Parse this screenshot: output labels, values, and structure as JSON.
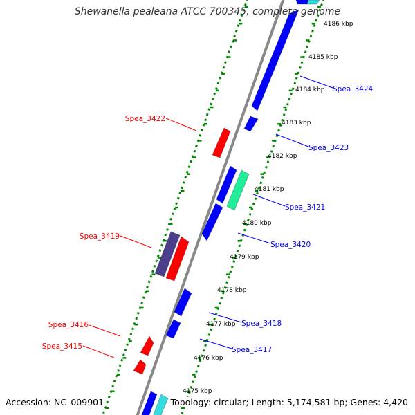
{
  "title": "Shewanella pealeana ATCC 700345, complete genome",
  "accession": "Accession: NC_009901",
  "topology": "Topology: circular; Length: 5,174,581 bp; Genes: 4,420",
  "colors": {
    "backbone": "#888888",
    "forward_gene": "#0000ff",
    "reverse_gene": "#ff0000",
    "dotted_track": "#008800",
    "rrna_gene": "#22ee99",
    "trna_gene": "#33dddd",
    "dark_gene": "#4b3f8c"
  },
  "ticks": [
    "4186 kbp",
    "4185 kbp",
    "4184 kbp",
    "4183 kbp",
    "4182 kbp",
    "4181 kbp",
    "4180 kbp",
    "4179 kbp",
    "4178 kbp",
    "4177 kbp",
    "4176 kbp",
    "4175 kbp"
  ],
  "gene_labels": [
    {
      "name": "Spea_3424",
      "strand": "forward"
    },
    {
      "name": "Spea_3423",
      "strand": "forward"
    },
    {
      "name": "Spea_3421",
      "strand": "forward"
    },
    {
      "name": "Spea_3420",
      "strand": "forward"
    },
    {
      "name": "Spea_3418",
      "strand": "forward"
    },
    {
      "name": "Spea_3417",
      "strand": "forward"
    },
    {
      "name": "Spea_3422",
      "strand": "reverse"
    },
    {
      "name": "Spea_3419",
      "strand": "reverse"
    },
    {
      "name": "Spea_3416",
      "strand": "reverse"
    },
    {
      "name": "Spea_3415",
      "strand": "reverse"
    }
  ]
}
